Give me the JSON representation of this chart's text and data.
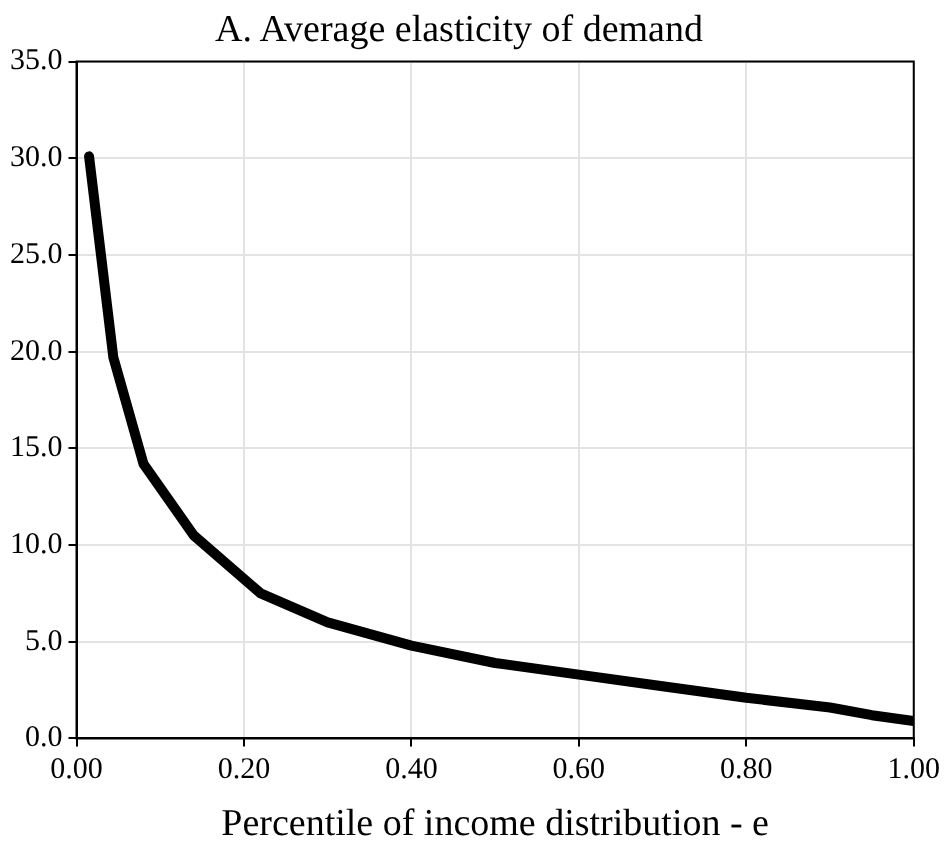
{
  "chart_data": {
    "type": "line",
    "title": "A. Average elasticity of demand",
    "xlabel": "Percentile of income distribution - e",
    "x": [
      0.015,
      0.044,
      0.08,
      0.14,
      0.22,
      0.3,
      0.4,
      0.5,
      0.6,
      0.7,
      0.8,
      0.9,
      0.95,
      1.0
    ],
    "series": [
      {
        "color": "#000000",
        "values": [
          30.1,
          19.7,
          14.2,
          10.5,
          7.5,
          6.0,
          4.8,
          3.9,
          3.3,
          2.7,
          2.1,
          1.6,
          1.2,
          0.9
        ]
      }
    ],
    "xlim": [
      0,
      1
    ],
    "ylim": [
      0,
      35
    ],
    "xticks": [
      {
        "value": 0,
        "label": "0.00"
      },
      {
        "value": 0.2,
        "label": "0.20"
      },
      {
        "value": 0.4,
        "label": "0.40"
      },
      {
        "value": 0.6,
        "label": "0.60"
      },
      {
        "value": 0.8,
        "label": "0.80"
      },
      {
        "value": 1,
        "label": "1.00"
      }
    ],
    "yticks": [
      {
        "value": 0,
        "label": "0.0"
      },
      {
        "value": 5,
        "label": "5.0"
      },
      {
        "value": 10,
        "label": "10.0"
      },
      {
        "value": 15,
        "label": "15.0"
      },
      {
        "value": 20,
        "label": "20.0"
      },
      {
        "value": 25,
        "label": "25.0"
      },
      {
        "value": 30,
        "label": "30.0"
      },
      {
        "value": 35,
        "label": "35.0"
      }
    ],
    "grid": true,
    "legend": false,
    "marker": "none",
    "line_style": "solid"
  }
}
